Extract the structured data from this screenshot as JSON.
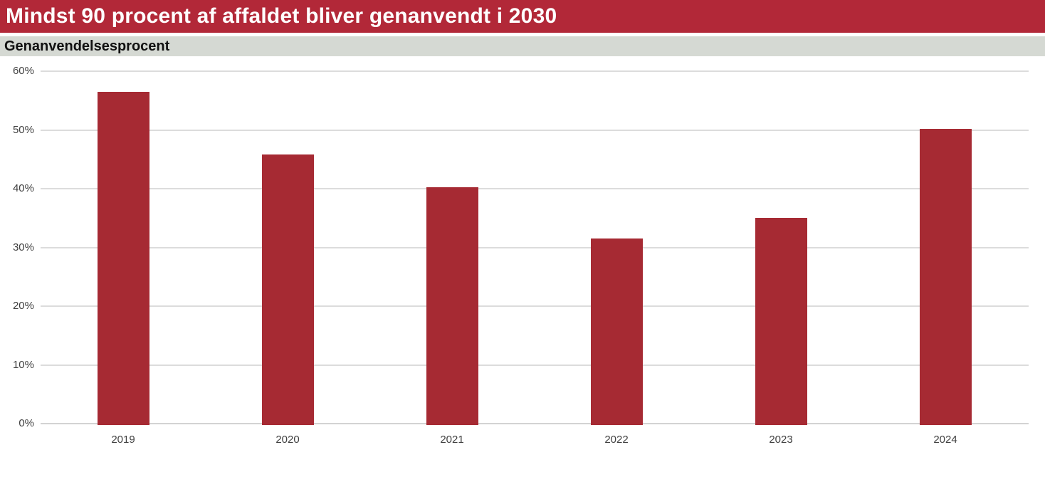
{
  "header": {
    "title": "Mindst 90 procent af affaldet bliver genanvendt i 2030",
    "background": "#b22838",
    "text_color": "#ffffff"
  },
  "subtitle": {
    "label": "Genanvendelsesprocent",
    "background": "#d5d9d3",
    "text_color": "#111111"
  },
  "chart_data": {
    "type": "bar",
    "title": "Mindst 90 procent af affaldet bliver genanvendt i 2030",
    "subtitle": "Genanvendelsesprocent",
    "categories": [
      "2019",
      "2020",
      "2021",
      "2022",
      "2023",
      "2024"
    ],
    "values": [
      56.5,
      45.8,
      40.3,
      31.5,
      35.0,
      50.2
    ],
    "xlabel": "",
    "ylabel": "Genanvendelsesprocent",
    "ylim": [
      0,
      60
    ],
    "ytick_step": 10,
    "ytick_labels": [
      "0%",
      "10%",
      "20%",
      "30%",
      "40%",
      "50%",
      "60%"
    ],
    "unit": "%",
    "legend": "none",
    "grid": "horizontal",
    "bar_color": "#a62a33",
    "gridline_color": "#dcdcdc",
    "axis_line_color": "#d3d3d3",
    "tick_label_color": "#404040"
  }
}
